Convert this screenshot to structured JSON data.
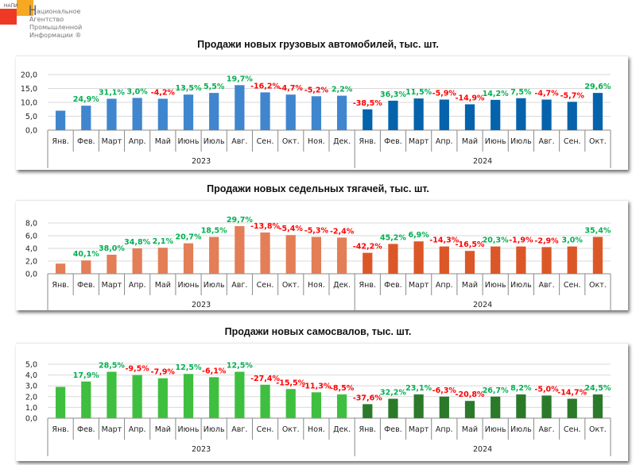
{
  "logo": {
    "abbr": "НАПИ",
    "letter": "Н",
    "name_lines": [
      "ациональное",
      "Агентство",
      "Промышленной",
      "Информации ®"
    ]
  },
  "colors": {
    "positive": "#00b050",
    "negative": "#ff0000"
  },
  "chart_data": [
    {
      "type": "bar",
      "title": "Продажи новых грузовых автомобилей, тыс. шт.",
      "xlabel": "",
      "ylabel": "",
      "ylim": [
        0,
        20
      ],
      "yticks": [
        "0,0",
        "5,0",
        "10,0",
        "15,0",
        "20,0"
      ],
      "ytick_values": [
        0,
        5,
        10,
        15,
        20
      ],
      "grid": true,
      "groups": [
        "2023",
        "2024"
      ],
      "categories": [
        "Янв.",
        "Фев.",
        "Март",
        "Апр.",
        "Май",
        "Июнь",
        "Июль",
        "Авг.",
        "Сен.",
        "Окт.",
        "Ноя.",
        "Дек.",
        "Янв.",
        "Фев.",
        "Март",
        "Апр.",
        "Май",
        "Июнь",
        "Июль",
        "Авг.",
        "Сен.",
        "Окт."
      ],
      "category_group": [
        0,
        0,
        0,
        0,
        0,
        0,
        0,
        0,
        0,
        0,
        0,
        0,
        1,
        1,
        1,
        1,
        1,
        1,
        1,
        1,
        1,
        1
      ],
      "series_colors": [
        "#3f86ce",
        "#0563ac"
      ],
      "values": [
        7.0,
        8.8,
        11.3,
        11.6,
        11.3,
        12.8,
        13.4,
        16.2,
        13.6,
        12.8,
        12.2,
        12.4,
        7.5,
        10.6,
        11.4,
        11.0,
        9.3,
        10.9,
        11.5,
        11.0,
        10.2,
        13.4
      ],
      "labels": [
        "",
        "24,9%",
        "31,1%",
        "3,0%",
        "-4,2%",
        "13,5%",
        "5,5%",
        "19,7%",
        "-16,2%",
        "-4,7%",
        "-5,2%",
        "2,2%",
        "-38,5%",
        "36,3%",
        "11,5%",
        "-5,9%",
        "-14,9%",
        "14,2%",
        "7,5%",
        "-4,7%",
        "-5,7%",
        "29,6%"
      ]
    },
    {
      "type": "bar",
      "title": "Продажи новых седельных тягачей, тыс. шт.",
      "xlabel": "",
      "ylabel": "",
      "ylim": [
        0,
        8
      ],
      "yticks": [
        "0,0",
        "2,0",
        "4,0",
        "6,0",
        "8,0"
      ],
      "ytick_values": [
        0,
        2,
        4,
        6,
        8
      ],
      "grid": true,
      "groups": [
        "2023",
        "2024"
      ],
      "categories": [
        "Янв.",
        "Фев.",
        "Март",
        "Апр.",
        "Май",
        "Июнь",
        "Июль",
        "Авг.",
        "Сен.",
        "Окт.",
        "Ноя.",
        "Дек.",
        "Янв.",
        "Фев.",
        "Март",
        "Апр.",
        "Май",
        "Июнь",
        "Июль",
        "Авг.",
        "Сен.",
        "Окт."
      ],
      "category_group": [
        0,
        0,
        0,
        0,
        0,
        0,
        0,
        0,
        0,
        0,
        0,
        0,
        1,
        1,
        1,
        1,
        1,
        1,
        1,
        1,
        1,
        1
      ],
      "series_colors": [
        "#e37e56",
        "#dc5728"
      ],
      "values": [
        1.6,
        2.1,
        3.0,
        4.0,
        4.1,
        4.8,
        5.8,
        7.5,
        6.5,
        6.1,
        5.8,
        5.7,
        3.3,
        4.7,
        5.1,
        4.3,
        3.6,
        4.3,
        4.3,
        4.2,
        4.3,
        5.8
      ],
      "labels": [
        "",
        "40,1%",
        "38,0%",
        "34,8%",
        "2,1%",
        "20,7%",
        "18,5%",
        "29,7%",
        "-13,8%",
        "-5,4%",
        "-5,3%",
        "-2,4%",
        "-42,2%",
        "45,2%",
        "6,9%",
        "-14,3%",
        "-16,5%",
        "20,3%",
        "-1,9%",
        "-2,9%",
        "3,0%",
        "35,4%"
      ]
    },
    {
      "type": "bar",
      "title": "Продажи новых самосвалов, тыс. шт.",
      "xlabel": "",
      "ylabel": "",
      "ylim": [
        0,
        5
      ],
      "yticks": [
        "0,0",
        "1,0",
        "2,0",
        "3,0",
        "4,0",
        "5,0"
      ],
      "ytick_values": [
        0,
        1,
        2,
        3,
        4,
        5
      ],
      "grid": true,
      "groups": [
        "2023",
        "2024"
      ],
      "categories": [
        "Янв.",
        "Фев.",
        "Март",
        "Апр.",
        "Май",
        "Июнь",
        "Июль",
        "Авг.",
        "Сен.",
        "Окт.",
        "Ноя.",
        "Дек.",
        "Янв.",
        "Фев.",
        "Март",
        "Апр.",
        "Май",
        "Июнь",
        "Июль",
        "Авг.",
        "Сен.",
        "Окт."
      ],
      "category_group": [
        0,
        0,
        0,
        0,
        0,
        0,
        0,
        0,
        0,
        0,
        0,
        0,
        1,
        1,
        1,
        1,
        1,
        1,
        1,
        1,
        1,
        1
      ],
      "series_colors": [
        "#3fbf3f",
        "#2a7a2a"
      ],
      "values": [
        2.9,
        3.4,
        4.3,
        4.0,
        3.7,
        4.1,
        3.8,
        4.3,
        3.1,
        2.7,
        2.4,
        2.2,
        1.3,
        1.8,
        2.2,
        2.0,
        1.6,
        2.0,
        2.2,
        2.1,
        1.8,
        2.2
      ],
      "labels": [
        "",
        "17,9%",
        "28,5%",
        "-9,5%",
        "-7,9%",
        "12,5%",
        "-6,1%",
        "12,5%",
        "-27,4%",
        "-15,5%",
        "-11,3%",
        "-8,5%",
        "-37,6%",
        "32,2%",
        "23,1%",
        "-6,3%",
        "-20,8%",
        "26,7%",
        "8,2%",
        "-5,0%",
        "-14,7%",
        "24,5%"
      ]
    }
  ]
}
